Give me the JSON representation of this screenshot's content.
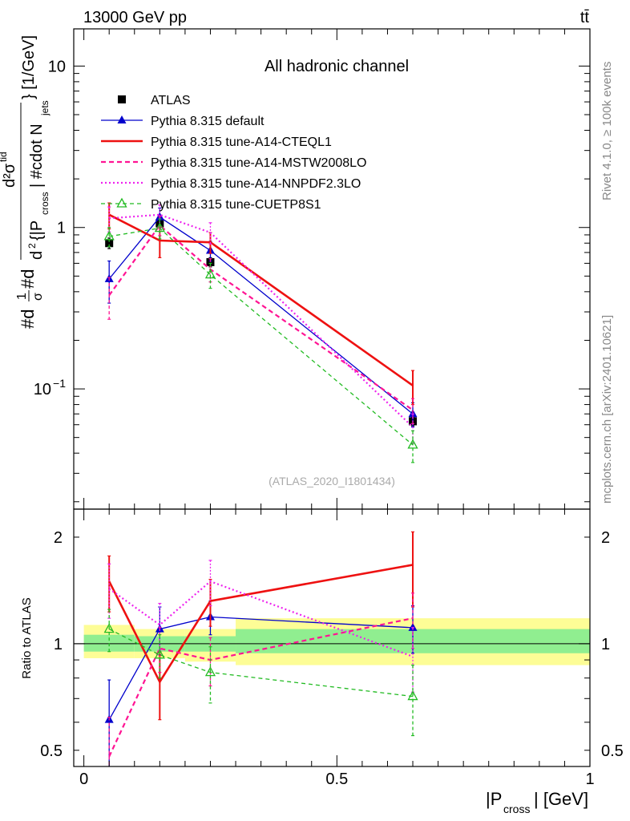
{
  "header": {
    "energy_label": "13000 GeV pp",
    "process_label": "tt̄"
  },
  "side_labels": {
    "rivet": "Rivet 4.1.0, ≥ 100k events",
    "mcplots": "mcplots.cern.ch [arXiv:2401.10621]"
  },
  "colors": {
    "atlas": "#000000",
    "default": "#0000cc",
    "cteql1": "#ee1111",
    "mstw": "#ff1493",
    "nnpdf": "#ee22ee",
    "cuetp8s1": "#22bb22",
    "band_inner": "#90ee90",
    "band_outer": "#fdfd96"
  },
  "chart_data": [
    {
      "type": "line",
      "title": "All hadronic channel",
      "analysis_tag": "(ATLAS_2020_I1801434)",
      "ylabel": "#d¹/σ#d d²σᵗᵗ/d²{|P_cross| #cdot N_jets} [1/GeV]",
      "ylabel_parts": {
        "prefix": "#d",
        "frac_num": "1",
        "frac_den": "σ",
        "mid": "#d",
        "d2_num": "d²σ",
        "d2_num_sup": "tid",
        "d2_den_a": "d",
        "d2_den_b": "{|P",
        "d2_den_sub": "cross",
        "d2_den_c": "| #cdot N",
        "d2_den_sub2": "jets",
        "d2_den_d": "} [1/GeV]"
      },
      "yscale": "log",
      "ylim": [
        0.018,
        17
      ],
      "xlim": [
        -0.02,
        1.0
      ],
      "y_tick_labels": [
        {
          "value": 10,
          "label": "10"
        },
        {
          "value": 1,
          "label": "1"
        },
        {
          "value": 0.1,
          "label": "10",
          "sup": "−1"
        }
      ],
      "x": [
        0.05,
        0.15,
        0.25,
        0.65
      ],
      "series": [
        {
          "name": "ATLAS",
          "key": "atlas",
          "style": "data",
          "values": [
            0.8,
            1.06,
            0.61,
            0.063
          ],
          "err_up": [
            0.06,
            0.06,
            0.04,
            0.004
          ],
          "err_dn": [
            0.06,
            0.06,
            0.04,
            0.004
          ]
        },
        {
          "name": "Pythia 8.315 default",
          "key": "default",
          "style": "solid",
          "values": [
            0.48,
            1.16,
            0.72,
            0.07
          ],
          "err_up": [
            0.14,
            0.16,
            0.1,
            0.012
          ],
          "err_dn": [
            0.14,
            0.16,
            0.1,
            0.012
          ]
        },
        {
          "name": "Pythia 8.315 tune-A14-CTEQL1",
          "key": "cteql1",
          "style": "thick",
          "values": [
            1.2,
            0.83,
            0.81,
            0.105
          ],
          "err_up": [
            0.22,
            0.18,
            0.12,
            0.025
          ],
          "err_dn": [
            0.22,
            0.18,
            0.12,
            0.025
          ]
        },
        {
          "name": "Pythia 8.315 tune-A14-MSTW2008LO",
          "key": "mstw",
          "style": "dashed",
          "values": [
            0.38,
            1.03,
            0.55,
            0.074
          ],
          "err_up": [
            0.11,
            0.14,
            0.09,
            0.013
          ],
          "err_dn": [
            0.11,
            0.14,
            0.09,
            0.013
          ]
        },
        {
          "name": "Pythia 8.315 tune-A14-NNPDF2.3LO",
          "key": "nnpdf",
          "style": "dotted",
          "values": [
            1.14,
            1.2,
            0.93,
            0.058
          ],
          "err_up": [
            0.2,
            0.18,
            0.14,
            0.012
          ],
          "err_dn": [
            0.2,
            0.18,
            0.14,
            0.012
          ]
        },
        {
          "name": "Pythia 8.315 tune-CUETP8S1",
          "key": "cuetp8s1",
          "style": "dashed-open",
          "values": [
            0.88,
            0.99,
            0.51,
            0.045
          ],
          "err_up": [
            0.12,
            0.14,
            0.09,
            0.01
          ],
          "err_dn": [
            0.12,
            0.14,
            0.09,
            0.01
          ]
        }
      ]
    },
    {
      "type": "line",
      "title": "",
      "ylabel": "Ratio to ATLAS",
      "xlabel": "|P",
      "xlabel_sub": "cross",
      "xlabel_tail": "| [GeV]",
      "yscale": "log",
      "ylim": [
        0.45,
        2.4
      ],
      "xlim": [
        -0.02,
        1.0
      ],
      "y_tick_labels": [
        {
          "value": 2,
          "label": "2"
        },
        {
          "value": 1,
          "label": "1"
        },
        {
          "value": 0.5,
          "label": "0.5"
        }
      ],
      "x_tick_labels": [
        {
          "value": 0,
          "label": "0"
        },
        {
          "value": 0.5,
          "label": "0.5"
        },
        {
          "value": 1,
          "label": "1"
        }
      ],
      "bands": [
        {
          "x_lo": 0.0,
          "x_hi": 0.1,
          "inner": [
            0.95,
            1.06
          ],
          "outer": [
            0.91,
            1.13
          ]
        },
        {
          "x_lo": 0.1,
          "x_hi": 0.2,
          "inner": [
            0.95,
            1.05
          ],
          "outer": [
            0.91,
            1.1
          ]
        },
        {
          "x_lo": 0.2,
          "x_hi": 0.3,
          "inner": [
            0.95,
            1.05
          ],
          "outer": [
            0.89,
            1.1
          ]
        },
        {
          "x_lo": 0.3,
          "x_hi": 1.0,
          "inner": [
            0.94,
            1.1
          ],
          "outer": [
            0.87,
            1.18
          ]
        }
      ],
      "x": [
        0.05,
        0.15,
        0.25,
        0.65
      ],
      "series": [
        {
          "name": "Pythia 8.315 default",
          "key": "default",
          "style": "solid",
          "values": [
            0.61,
            1.1,
            1.19,
            1.11
          ],
          "err_up": [
            0.18,
            0.17,
            0.13,
            0.17
          ],
          "err_dn": [
            0.18,
            0.17,
            0.13,
            0.17
          ]
        },
        {
          "name": "Pythia 8.315 tune-A14-CTEQL1",
          "key": "cteql1",
          "style": "thick",
          "values": [
            1.5,
            0.78,
            1.32,
            1.67
          ],
          "err_up": [
            0.27,
            0.17,
            0.2,
            0.4
          ],
          "err_dn": [
            0.27,
            0.17,
            0.2,
            0.4
          ]
        },
        {
          "name": "Pythia 8.315 tune-A14-MSTW2008LO",
          "key": "mstw",
          "style": "dashed",
          "values": [
            0.48,
            0.97,
            0.9,
            1.18
          ],
          "err_up": [
            0.14,
            0.14,
            0.14,
            0.21
          ],
          "err_dn": [
            0.14,
            0.14,
            0.14,
            0.21
          ]
        },
        {
          "name": "Pythia 8.315 tune-A14-NNPDF2.3LO",
          "key": "nnpdf",
          "style": "dotted",
          "values": [
            1.43,
            1.13,
            1.5,
            0.92
          ],
          "err_up": [
            0.25,
            0.17,
            0.22,
            0.19
          ],
          "err_dn": [
            0.25,
            0.17,
            0.22,
            0.19
          ]
        },
        {
          "name": "Pythia 8.315 tune-CUETP8S1",
          "key": "cuetp8s1",
          "style": "dashed-open",
          "values": [
            1.1,
            0.93,
            0.83,
            0.71
          ],
          "err_up": [
            0.15,
            0.13,
            0.15,
            0.16
          ],
          "err_dn": [
            0.15,
            0.13,
            0.15,
            0.16
          ]
        }
      ]
    }
  ]
}
